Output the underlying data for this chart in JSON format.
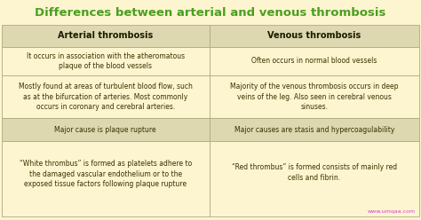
{
  "title": "Differences between arterial and venous thrombosis",
  "title_color": "#4a9e1f",
  "bg_color": "#fdf5d0",
  "header_bg": "#ddd8b0",
  "row_alt_bg": "#fdf5d0",
  "row_highlight_bg": "#ddd8b0",
  "border_color": "#b0aa80",
  "text_color": "#3a3000",
  "header_text_color": "#1a1a00",
  "watermark_color": "#cc44cc",
  "col1_header": "Arterial thrombosis",
  "col2_header": "Venous thrombosis",
  "col_split": 0.497,
  "rows": [
    {
      "col1": "It occurs in association with the atheromatous\nplaque of the blood vessels",
      "col2": "Often occurs in normal blood vessels",
      "highlight": false
    },
    {
      "col1": "Mostly found at areas of turbulent blood flow, such\nas at the bifurcation of arteries. Most commonly\noccurs in coronary and cerebral arteries.",
      "col2": "Majority of the venous thrombosis occurs in deep\nveins of the leg. Also seen in cerebral venous\nsinuses.",
      "highlight": false
    },
    {
      "col1": "Major cause is plaque rupture",
      "col2": "Major causes are stasis and hypercoagulability",
      "highlight": true
    },
    {
      "col1": "“White thrombus” is formed as platelets adhere to\nthe damaged vascular endothelium or to the\nexposed tissue factors following plaque rupture",
      "col2": "“Red thrombus” is formed consists of mainly red\ncells and fibrin.",
      "highlight": false
    }
  ],
  "watermark": "www.umqaa.com",
  "title_fontsize": 9.5,
  "header_fontsize": 7.0,
  "cell_fontsize": 5.5
}
